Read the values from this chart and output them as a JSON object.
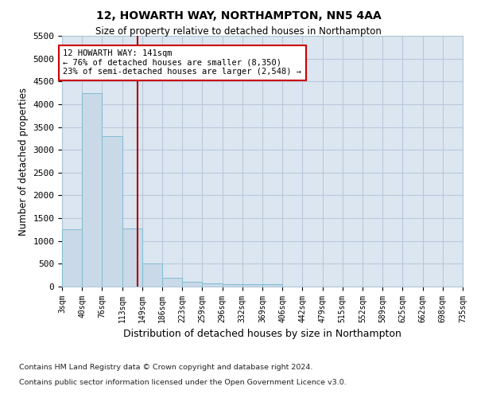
{
  "title1": "12, HOWARTH WAY, NORTHAMPTON, NN5 4AA",
  "title2": "Size of property relative to detached houses in Northampton",
  "xlabel": "Distribution of detached houses by size in Northampton",
  "ylabel": "Number of detached properties",
  "footer1": "Contains HM Land Registry data © Crown copyright and database right 2024.",
  "footer2": "Contains public sector information licensed under the Open Government Licence v3.0.",
  "property_size": 141,
  "property_label": "12 HOWARTH WAY: 141sqm",
  "annotation_line1": "← 76% of detached houses are smaller (8,350)",
  "annotation_line2": "23% of semi-detached houses are larger (2,548) →",
  "bar_color": "#c9d9e8",
  "bar_edge_color": "#7fbcd2",
  "vline_color": "#aa0000",
  "annotation_box_color": "#ffffff",
  "annotation_box_edge": "#cc0000",
  "grid_color": "#b8c8dc",
  "background_color": "#dce6f0",
  "bin_edges": [
    3,
    40,
    76,
    113,
    149,
    186,
    223,
    259,
    296,
    332,
    369,
    406,
    442,
    479,
    515,
    552,
    589,
    625,
    662,
    698,
    735
  ],
  "bin_counts": [
    1250,
    4250,
    3300,
    1280,
    500,
    190,
    100,
    75,
    50,
    50,
    50,
    0,
    0,
    0,
    0,
    0,
    0,
    0,
    0,
    0
  ],
  "ylim": [
    0,
    5500
  ],
  "yticks": [
    0,
    500,
    1000,
    1500,
    2000,
    2500,
    3000,
    3500,
    4000,
    4500,
    5000,
    5500
  ]
}
